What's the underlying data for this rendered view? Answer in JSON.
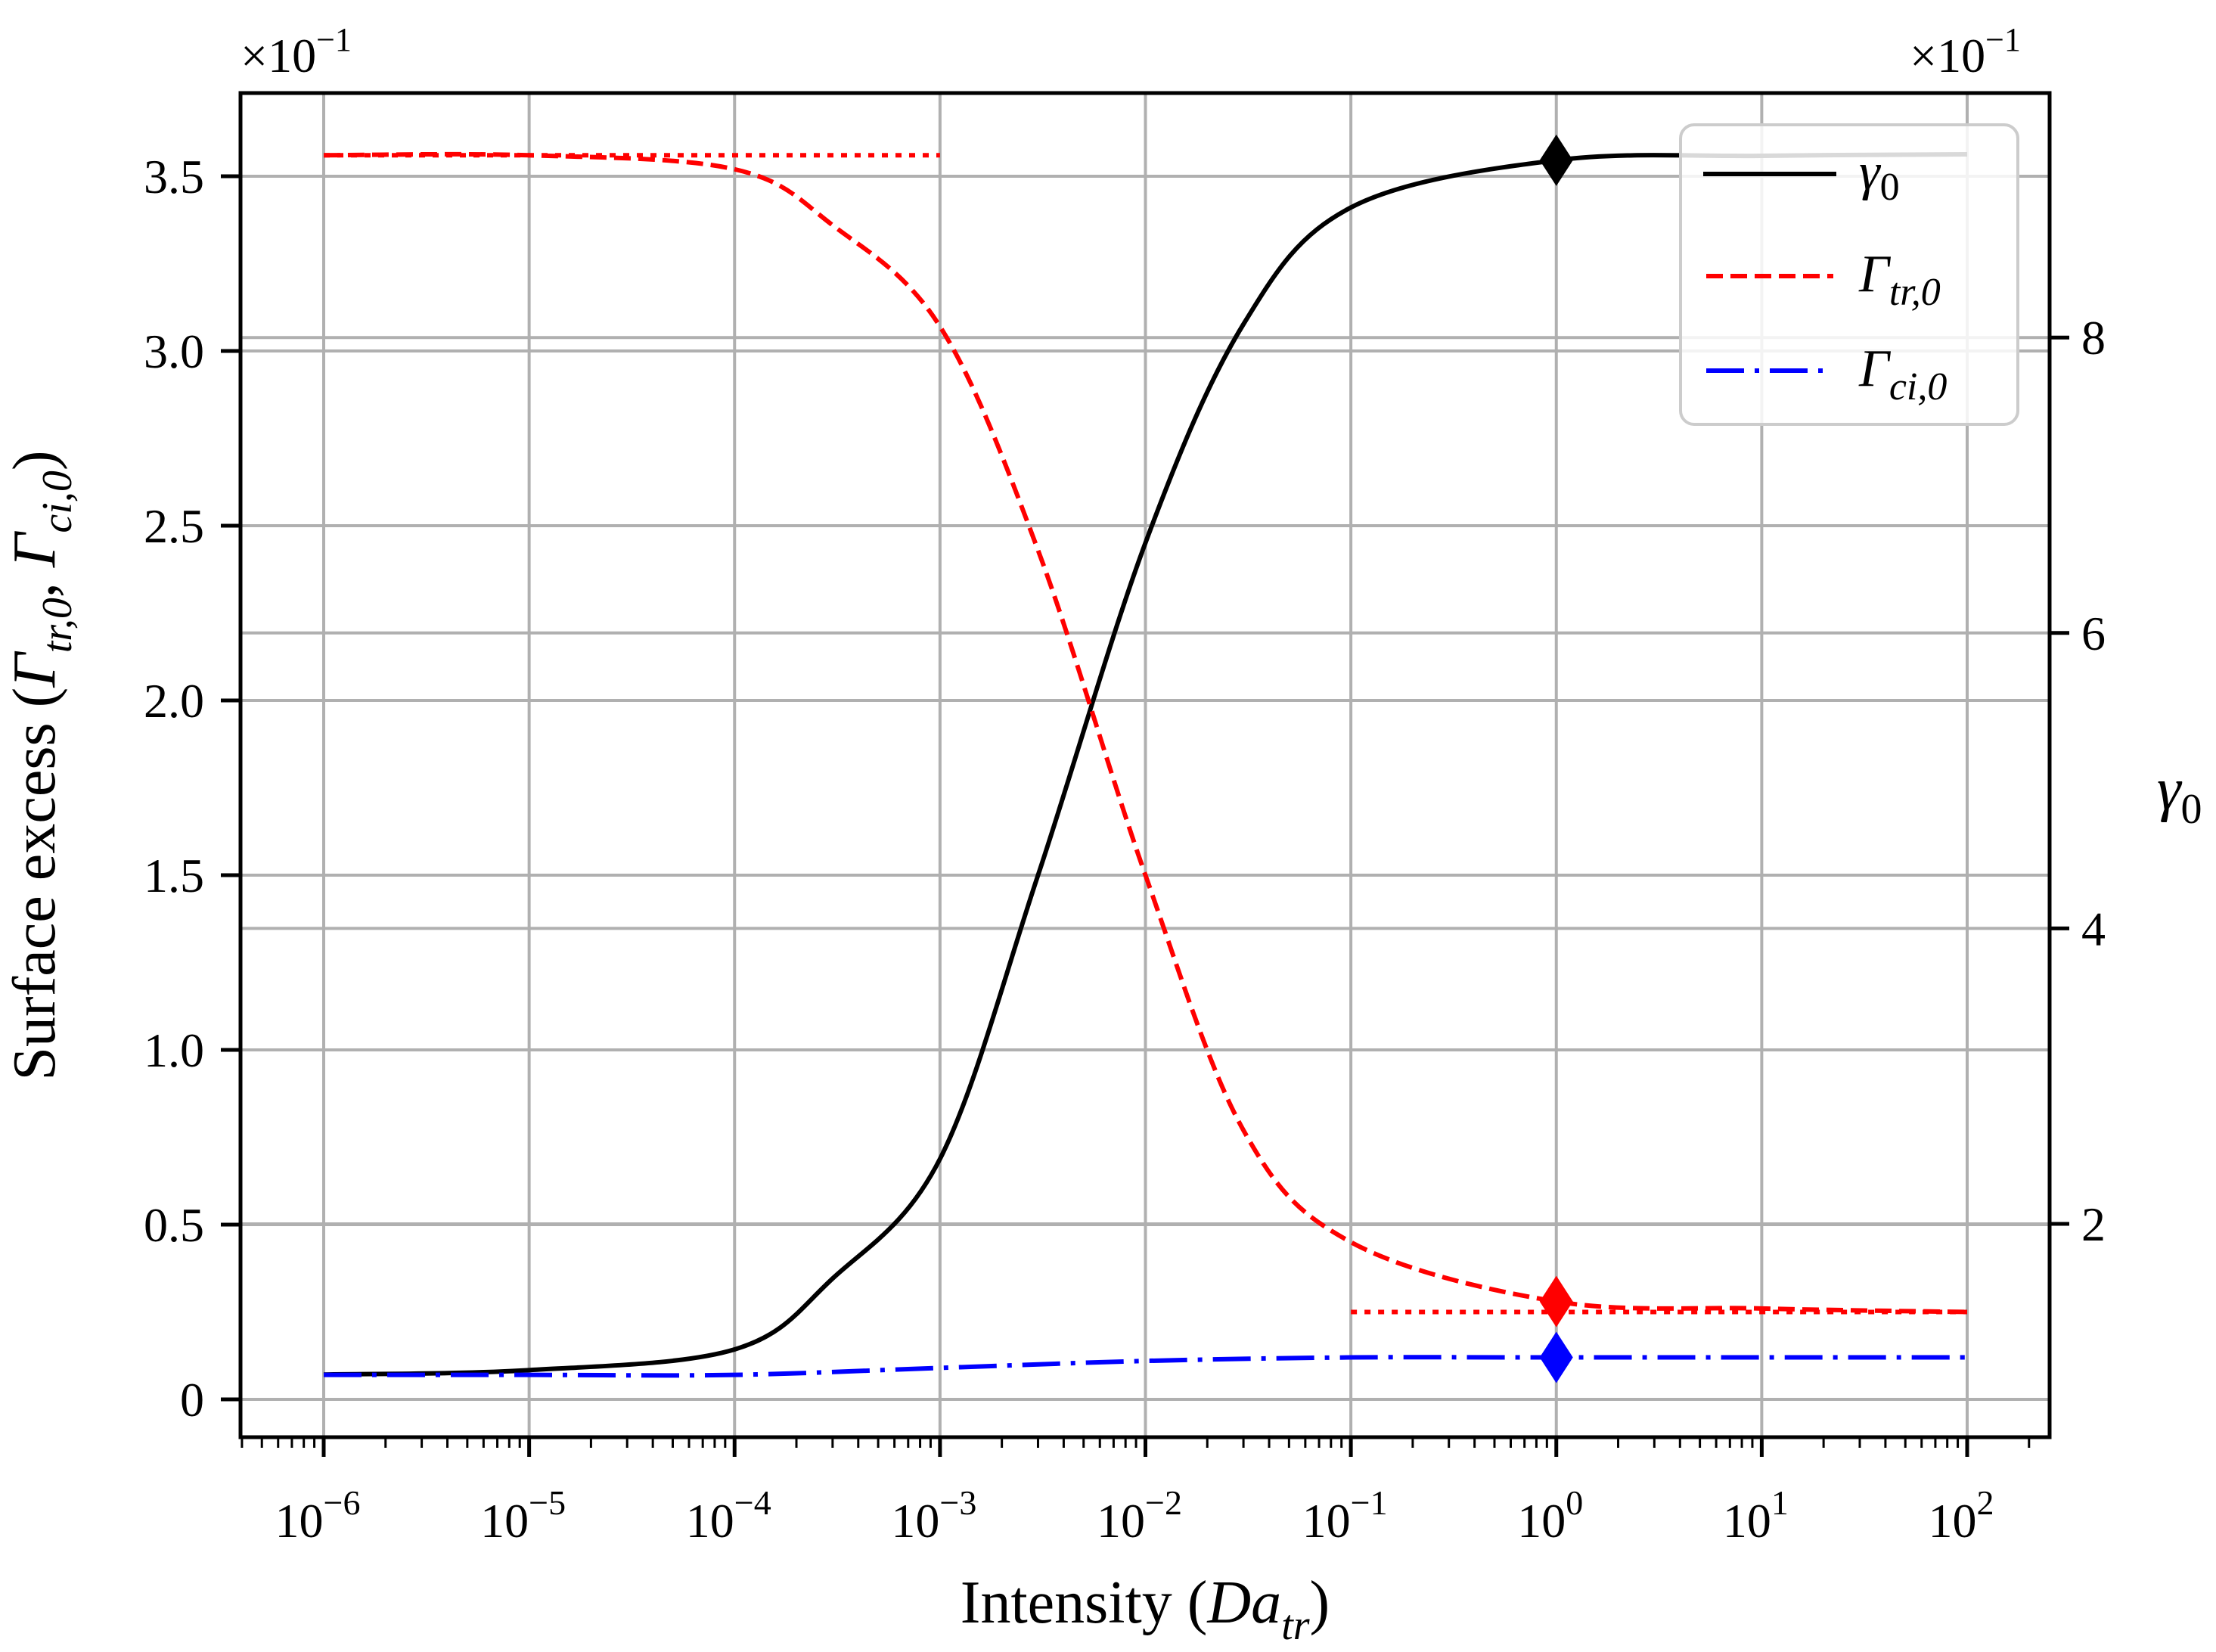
{
  "chart_data": {
    "type": "line",
    "title": "",
    "xlabel": "Intensity (Da_tr)",
    "ylabel": "Surface excess (Γ_tr,0, Γ_ci,0)",
    "ylabel_right": "γ_0",
    "xscale": "log",
    "xlim": [
      4e-07,
      250
    ],
    "ylim": [
      -0.11,
      3.74
    ],
    "ylim_right": [
      0.55,
      9.66
    ],
    "y_multiplier": "×10^-1",
    "y_right_multiplier": "×10^-1",
    "grid": true,
    "legend_position": "upper right",
    "x_ticks": [
      "10^-6",
      "10^-5",
      "10^-4",
      "10^-3",
      "10^-2",
      "10^-1",
      "10^0",
      "10^1",
      "10^2"
    ],
    "y_ticks": [
      "0",
      "0.5",
      "1.0",
      "1.5",
      "2.0",
      "2.5",
      "3.0",
      "3.5"
    ],
    "y_right_ticks": [
      "2",
      "4",
      "6",
      "8"
    ],
    "x": [
      1e-06,
      1e-05,
      0.0001,
      0.0003,
      0.001,
      0.003,
      0.01,
      0.03,
      0.1,
      1,
      10,
      100
    ],
    "series": [
      {
        "name": "γ_0",
        "axis": "right",
        "color": "#000000",
        "style": "solid",
        "values": [
          0.98,
          1.01,
          1.15,
          1.63,
          2.44,
          4.36,
          6.61,
          8.09,
          8.88,
          9.2,
          9.23,
          9.24
        ]
      },
      {
        "name": "Γ_tr,0",
        "axis": "left",
        "color": "#ff0000",
        "style": "dashed",
        "values": [
          3.56,
          3.56,
          3.52,
          3.36,
          3.07,
          2.43,
          1.5,
          0.77,
          0.45,
          0.28,
          0.26,
          0.25
        ]
      },
      {
        "name": "Γ_ci,0",
        "axis": "left",
        "color": "#0000ff",
        "style": "dashdot",
        "x": [
          1e-06,
          1e-05,
          0.0001,
          0.001,
          0.01,
          0.1,
          1,
          100
        ],
        "values": [
          0.07,
          0.07,
          0.07,
          0.09,
          0.11,
          0.12,
          0.12,
          0.12
        ]
      }
    ],
    "reference_lines": [
      {
        "color": "#ff0000",
        "style": "dotted",
        "axis": "left",
        "y": 3.56,
        "x_range": [
          1e-06,
          0.001
        ]
      },
      {
        "color": "#ff0000",
        "style": "dotted",
        "axis": "left",
        "y": 0.25,
        "x_range": [
          0.1,
          100
        ]
      }
    ],
    "markers": [
      {
        "series": "γ_0",
        "x": 1,
        "y": 9.2,
        "shape": "diamond",
        "color": "#000000"
      },
      {
        "series": "Γ_tr,0",
        "x": 1,
        "y": 0.28,
        "shape": "diamond",
        "color": "#ff0000"
      },
      {
        "series": "Γ_ci,0",
        "x": 1,
        "y": 0.12,
        "shape": "diamond",
        "color": "#0000ff"
      }
    ]
  },
  "labels": {
    "multiplier_left_base": "×10",
    "multiplier_left_exp": "−1",
    "multiplier_right_base": "×10",
    "multiplier_right_exp": "−1",
    "xlabel_main": "Intensity (",
    "xlabel_var": "Da",
    "xlabel_sub": "tr",
    "xlabel_close": ")",
    "ylabel_main": "Surface excess (",
    "ylabel_g1": "Γ",
    "ylabel_g1_sub": "tr,0",
    "ylabel_sep": ", ",
    "ylabel_g2": "Γ",
    "ylabel_g2_sub": "ci,0",
    "ylabel_close": ")",
    "ylabel_right_var": "γ",
    "ylabel_right_sub": "0"
  },
  "x_tick_labels": [
    {
      "base": "10",
      "exp": "−6"
    },
    {
      "base": "10",
      "exp": "−5"
    },
    {
      "base": "10",
      "exp": "−4"
    },
    {
      "base": "10",
      "exp": "−3"
    },
    {
      "base": "10",
      "exp": "−2"
    },
    {
      "base": "10",
      "exp": "−1"
    },
    {
      "base": "10",
      "exp": "0"
    },
    {
      "base": "10",
      "exp": "1"
    },
    {
      "base": "10",
      "exp": "2"
    }
  ],
  "y_tick_labels": [
    "0",
    "0.5",
    "1.0",
    "1.5",
    "2.0",
    "2.5",
    "3.0",
    "3.5"
  ],
  "y_right_tick_labels": [
    "2",
    "4",
    "6",
    "8"
  ],
  "legend": [
    {
      "var": "γ",
      "sub": "0"
    },
    {
      "var": "Γ",
      "sub": "tr,0"
    },
    {
      "var": "Γ",
      "sub": "ci,0"
    }
  ]
}
